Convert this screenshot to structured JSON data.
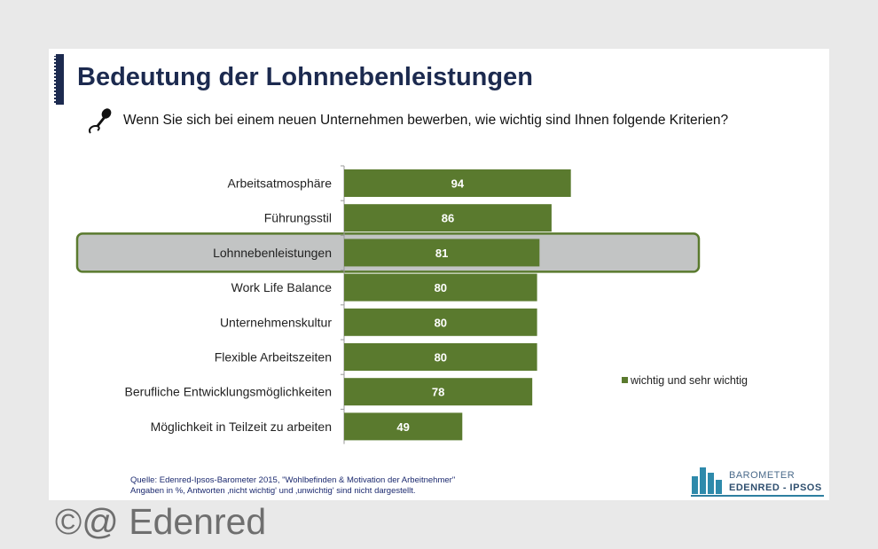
{
  "title": "Bedeutung der Lohnnebenleistungen",
  "question": "Wenn Sie sich bei einem neuen Unternehmen bewerben, wie wichtig sind Ihnen folgende Kriterien?",
  "chart_data": {
    "type": "bar",
    "orientation": "horizontal",
    "categories": [
      "Arbeitsatmosphäre",
      "Führungsstil",
      "Lohnnebenleistungen",
      "Work Life Balance",
      "Unternehmenskultur",
      "Flexible Arbeitszeiten",
      "Berufliche Entwicklungsmöglichkeiten",
      "Möglichkeit in Teilzeit zu arbeiten"
    ],
    "series": [
      {
        "name": "wichtig und sehr wichtig",
        "values": [
          94,
          86,
          81,
          80,
          80,
          80,
          78,
          49
        ]
      }
    ],
    "highlighted_category": "Lohnnebenleistungen",
    "xlim": [
      0,
      100
    ],
    "legend_position": "right",
    "colors": {
      "bar": "#5a7a2e",
      "highlight_fill": "#c2c4c4",
      "highlight_border": "#5a7a2e",
      "label": "#ffffff"
    }
  },
  "source": {
    "line1": "Quelle: Edenred-Ipsos-Barometer 2015, \"Wohlbefinden & Motivation der Arbeitnehmer\"",
    "line2": "Angaben in %, Antworten ‚nicht wichtig' und ‚unwichtig' sind nicht dargestellt."
  },
  "logo": {
    "line1": "BAROMETER",
    "line2": "EDENRED - IPSOS"
  },
  "watermark": "©@ Edenred"
}
